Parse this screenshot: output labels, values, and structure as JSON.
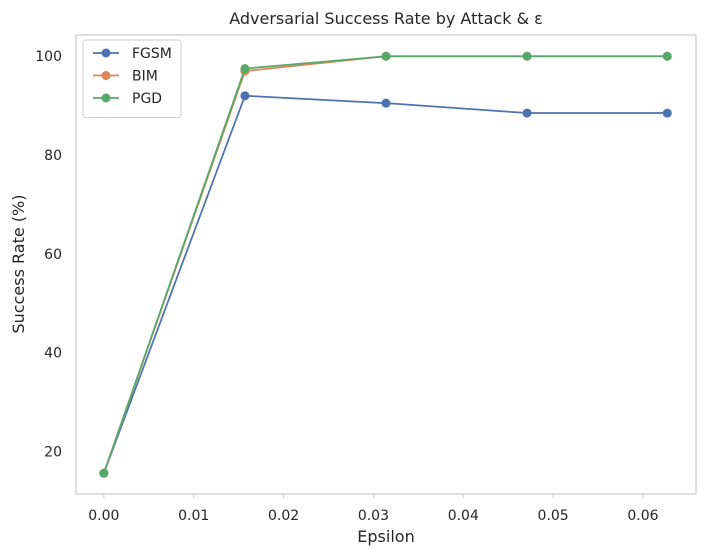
{
  "chart_data": {
    "type": "line",
    "title": "Adversarial Success Rate by Attack & ε",
    "xlabel": "Epsilon",
    "ylabel": "Success Rate (%)",
    "x": [
      0.0,
      0.0157,
      0.0314,
      0.0471,
      0.0627
    ],
    "xlim": [
      -0.0031,
      0.0659
    ],
    "ylim": [
      11.4,
      104.3
    ],
    "xticks": [
      0.0,
      0.01,
      0.02,
      0.03,
      0.04,
      0.05,
      0.06
    ],
    "xtick_labels": [
      "0.00",
      "0.01",
      "0.02",
      "0.03",
      "0.04",
      "0.05",
      "0.06"
    ],
    "yticks": [
      20,
      40,
      60,
      80,
      100
    ],
    "ytick_labels": [
      "20",
      "40",
      "60",
      "80",
      "100"
    ],
    "grid": false,
    "legend_position": "top-left",
    "marker": "circle",
    "series": [
      {
        "name": "FGSM",
        "color": "#4c72b0",
        "values": [
          15.6,
          92.0,
          90.5,
          88.5,
          88.5
        ]
      },
      {
        "name": "BIM",
        "color": "#dd8452",
        "values": [
          15.6,
          97.0,
          100.0,
          100.0,
          100.0
        ]
      },
      {
        "name": "PGD",
        "color": "#55a868",
        "values": [
          15.6,
          97.5,
          100.0,
          100.0,
          100.0
        ]
      }
    ]
  }
}
